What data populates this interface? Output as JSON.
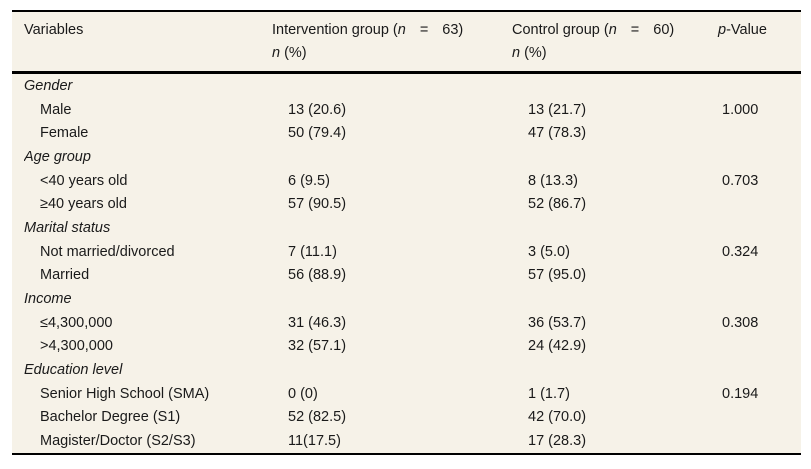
{
  "colors": {
    "table_background": "#f6f2e8",
    "border": "#000000",
    "text": "#1a1a1a",
    "page_background": "#ffffff"
  },
  "table": {
    "header": {
      "variables": "Variables",
      "intervention": {
        "pre": "Intervention group (",
        "n_italic": "n",
        "eq": "=",
        "count": "63)",
        "line2_n_italic": "n",
        "line2_pct": "(%)"
      },
      "control": {
        "pre": "Control group (",
        "n_italic": "n",
        "eq": "=",
        "count": "60)",
        "line2_n_italic": "n",
        "line2_pct": "(%)"
      },
      "p_value": {
        "p_italic": "p",
        "rest": "-Value"
      }
    },
    "rows": [
      {
        "type": "group",
        "label": "Gender",
        "intervention": "",
        "control": "",
        "p": ""
      },
      {
        "type": "item",
        "label": "Male",
        "intervention": "13 (20.6)",
        "control": "13 (21.7)",
        "p": "1.000"
      },
      {
        "type": "item",
        "label": "Female",
        "intervention": "50 (79.4)",
        "control": "47 (78.3)",
        "p": ""
      },
      {
        "type": "group",
        "label": "Age group",
        "intervention": "",
        "control": "",
        "p": ""
      },
      {
        "type": "item",
        "label": "<40 years old",
        "intervention": "6 (9.5)",
        "control": "8 (13.3)",
        "p": "0.703"
      },
      {
        "type": "item",
        "label": "≥40 years old",
        "intervention": "57 (90.5)",
        "control": "52 (86.7)",
        "p": ""
      },
      {
        "type": "group",
        "label": "Marital status",
        "intervention": "",
        "control": "",
        "p": ""
      },
      {
        "type": "item",
        "label": "Not married/divorced",
        "intervention": "7 (11.1)",
        "control": "3 (5.0)",
        "p": "0.324"
      },
      {
        "type": "item",
        "label": "Married",
        "intervention": "56 (88.9)",
        "control": "57 (95.0)",
        "p": ""
      },
      {
        "type": "group",
        "label": "Income",
        "intervention": "",
        "control": "",
        "p": ""
      },
      {
        "type": "item",
        "label": "≤4,300,000",
        "intervention": "31 (46.3)",
        "control": "36 (53.7)",
        "p": "0.308"
      },
      {
        "type": "item",
        "label": ">4,300,000",
        "intervention": "32 (57.1)",
        "control": "24 (42.9)",
        "p": ""
      },
      {
        "type": "group",
        "label": "Education level",
        "intervention": "",
        "control": "",
        "p": ""
      },
      {
        "type": "item",
        "label": "Senior High School (SMA)",
        "intervention": "0 (0)",
        "control": "1 (1.7)",
        "p": "0.194"
      },
      {
        "type": "item",
        "label": "Bachelor Degree (S1)",
        "intervention": "52 (82.5)",
        "control": "42 (70.0)",
        "p": ""
      },
      {
        "type": "item",
        "label": "Magister/Doctor (S2/S3)",
        "intervention": "11(17.5)",
        "control": "17 (28.3)",
        "p": ""
      }
    ]
  }
}
